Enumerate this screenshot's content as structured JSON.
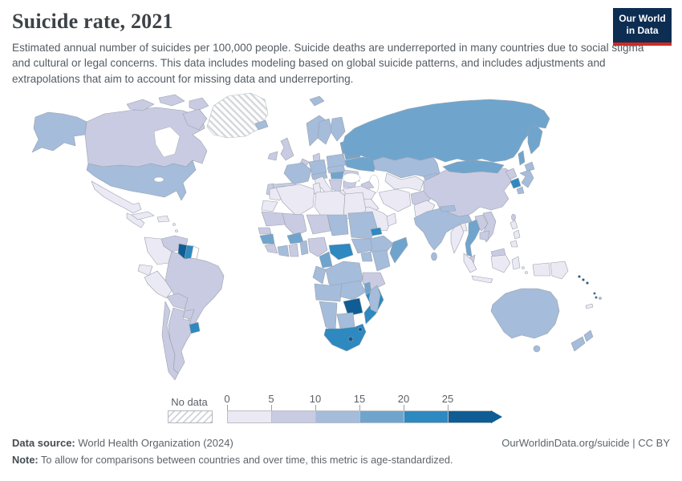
{
  "header": {
    "title": "Suicide rate, 2021",
    "subtitle": "Estimated annual number of suicides per 100,000 people. Suicide deaths are underreported in many countries due to social stigma and cultural or legal concerns. This data includes modeling based on global suicide patterns, and includes adjustments and extrapolations that aim to account for missing data and underreporting."
  },
  "logo": {
    "line1": "Our World",
    "line2": "in Data",
    "bg_color": "#0d2d52",
    "accent_color": "#cf2b24"
  },
  "legend": {
    "no_data_label": "No data",
    "ticks": [
      "0",
      "5",
      "10",
      "15",
      "20",
      "25"
    ]
  },
  "footer": {
    "source_label": "Data source:",
    "source_text": " World Health Organization (2024)",
    "link_text": "OurWorldinData.org/suicide | CC BY",
    "note_label": "Note:",
    "note_text": " To allow for comparisons between countries and over time, this metric is age-standardized."
  },
  "chart_data": {
    "type": "heatmap",
    "subtype": "choropleth-world-map",
    "title": "Suicide rate, 2021",
    "unit": "suicides per 100,000 people",
    "no_data_label": "No data",
    "legend_position": "bottom",
    "bins": [
      {
        "range": "0-5",
        "color": "#ebe9f3"
      },
      {
        "range": "5-10",
        "color": "#c9cbe2"
      },
      {
        "range": "10-15",
        "color": "#a5bcdb"
      },
      {
        "range": "15-20",
        "color": "#6fa5cd"
      },
      {
        "range": "20-25",
        "color": "#2d89c0"
      },
      {
        "range": "25+",
        "color": "#0f5d94"
      }
    ],
    "regions": {
      "greenland": "no-data",
      "french-guiana": "none",
      "canada": "5-10",
      "arctic-islands": "5-10",
      "alaska": "10-15",
      "united-states": "10-15",
      "mexico": "0-5",
      "central-america": "0-5",
      "cuba": "0-5",
      "hispaniola": "0-5",
      "lesser-antilles": "0-5",
      "venezuela": "5-10",
      "guyana": "25+",
      "suriname": "20-25",
      "colombia": "0-5",
      "ecuador": "0-5",
      "peru": "0-5",
      "brazil": "5-10",
      "bolivia": "5-10",
      "paraguay": "5-10",
      "uruguay": "20-25",
      "argentina": "5-10",
      "chile": "5-10",
      "iceland": "10-15",
      "ireland": "5-10",
      "united-kingdom": "5-10",
      "norway": "10-15",
      "sweden": "10-15",
      "finland": "10-15",
      "svalbard": "10-15",
      "baltics": "15-20",
      "denmark": "5-10",
      "germany": "10-15",
      "benelux": "5-10",
      "poland": "10-15",
      "france": "10-15",
      "spain": "5-10",
      "portugal": "5-10",
      "italy": "0-5",
      "switzerland-austria": "10-15",
      "czech-slovakia": "10-15",
      "hungary": "15-20",
      "romania": "5-10",
      "balkans": "5-10",
      "bulgaria": "5-10",
      "greece": "0-5",
      "ukraine": "15-20",
      "belarus": "15-20",
      "russia": "15-20",
      "kamchatka": "15-20",
      "sakhalin": "15-20",
      "chukotka-west": "15-20",
      "kazakhstan": "10-15",
      "central-asia": "0-5",
      "kyrgyz-tajik": "10-15",
      "caucasus": "5-10",
      "turkey": "0-5",
      "levant-iraq": "0-5",
      "saudi-arabia": "0-5",
      "yemen": "5-10",
      "oman": "0-5",
      "iran": "0-5",
      "afghanistan": "5-10",
      "pakistan": "0-5",
      "india": "10-15",
      "nepal": "10-15",
      "sri-lanka": "10-15",
      "bangladesh": "0-5",
      "china": "5-10",
      "mongolia": "15-20",
      "north-korea": "5-10",
      "south-korea": "20-25",
      "japan": "10-15",
      "taiwan": "5-10",
      "myanmar": "0-5",
      "thailand": "15-20",
      "laos": "5-10",
      "vietnam": "5-10",
      "cambodia": "5-10",
      "malaysia": "5-10",
      "malaysia-borneo": "5-10",
      "indonesia": "0-5",
      "philippines": "0-5",
      "papua-new-guinea": "0-5",
      "new-caledonia": "0-5",
      "solomon-islands": "25+",
      "vanuatu": "25+",
      "fiji": "10-15",
      "australia": "10-15",
      "tasmania": "10-15",
      "new-zealand": "10-15",
      "morocco": "0-5",
      "western-sahara": "0-5",
      "algeria": "0-5",
      "tunisia": "0-5",
      "libya": "0-5",
      "egypt": "0-5",
      "mauritania": "5-10",
      "mali": "5-10",
      "niger": "5-10",
      "chad": "10-15",
      "sudan": "10-15",
      "eritrea": "20-25",
      "ethiopia": "10-15",
      "somalia": "15-20",
      "senegal": "5-10",
      "guinea": "15-20",
      "sierra-leone-liberia": "5-10",
      "ivory-coast": "10-15",
      "ghana": "5-10",
      "burkina-faso": "15-20",
      "togo-benin": "10-15",
      "nigeria": "5-10",
      "cameroon": "15-20",
      "central-african-republic": "20-25",
      "south-sudan": "10-15",
      "dr-congo": "10-15",
      "congo-gabon": "10-15",
      "uganda": "10-15",
      "kenya": "10-15",
      "tanzania": "5-10",
      "angola": "10-15",
      "zambia": "10-15",
      "malawi": "15-20",
      "mozambique": "20-25",
      "zimbabwe": "25+",
      "botswana": "10-15",
      "namibia": "10-15",
      "south-africa": "20-25",
      "lesotho": "25+",
      "eswatini": "25+",
      "madagascar": "10-15"
    }
  }
}
